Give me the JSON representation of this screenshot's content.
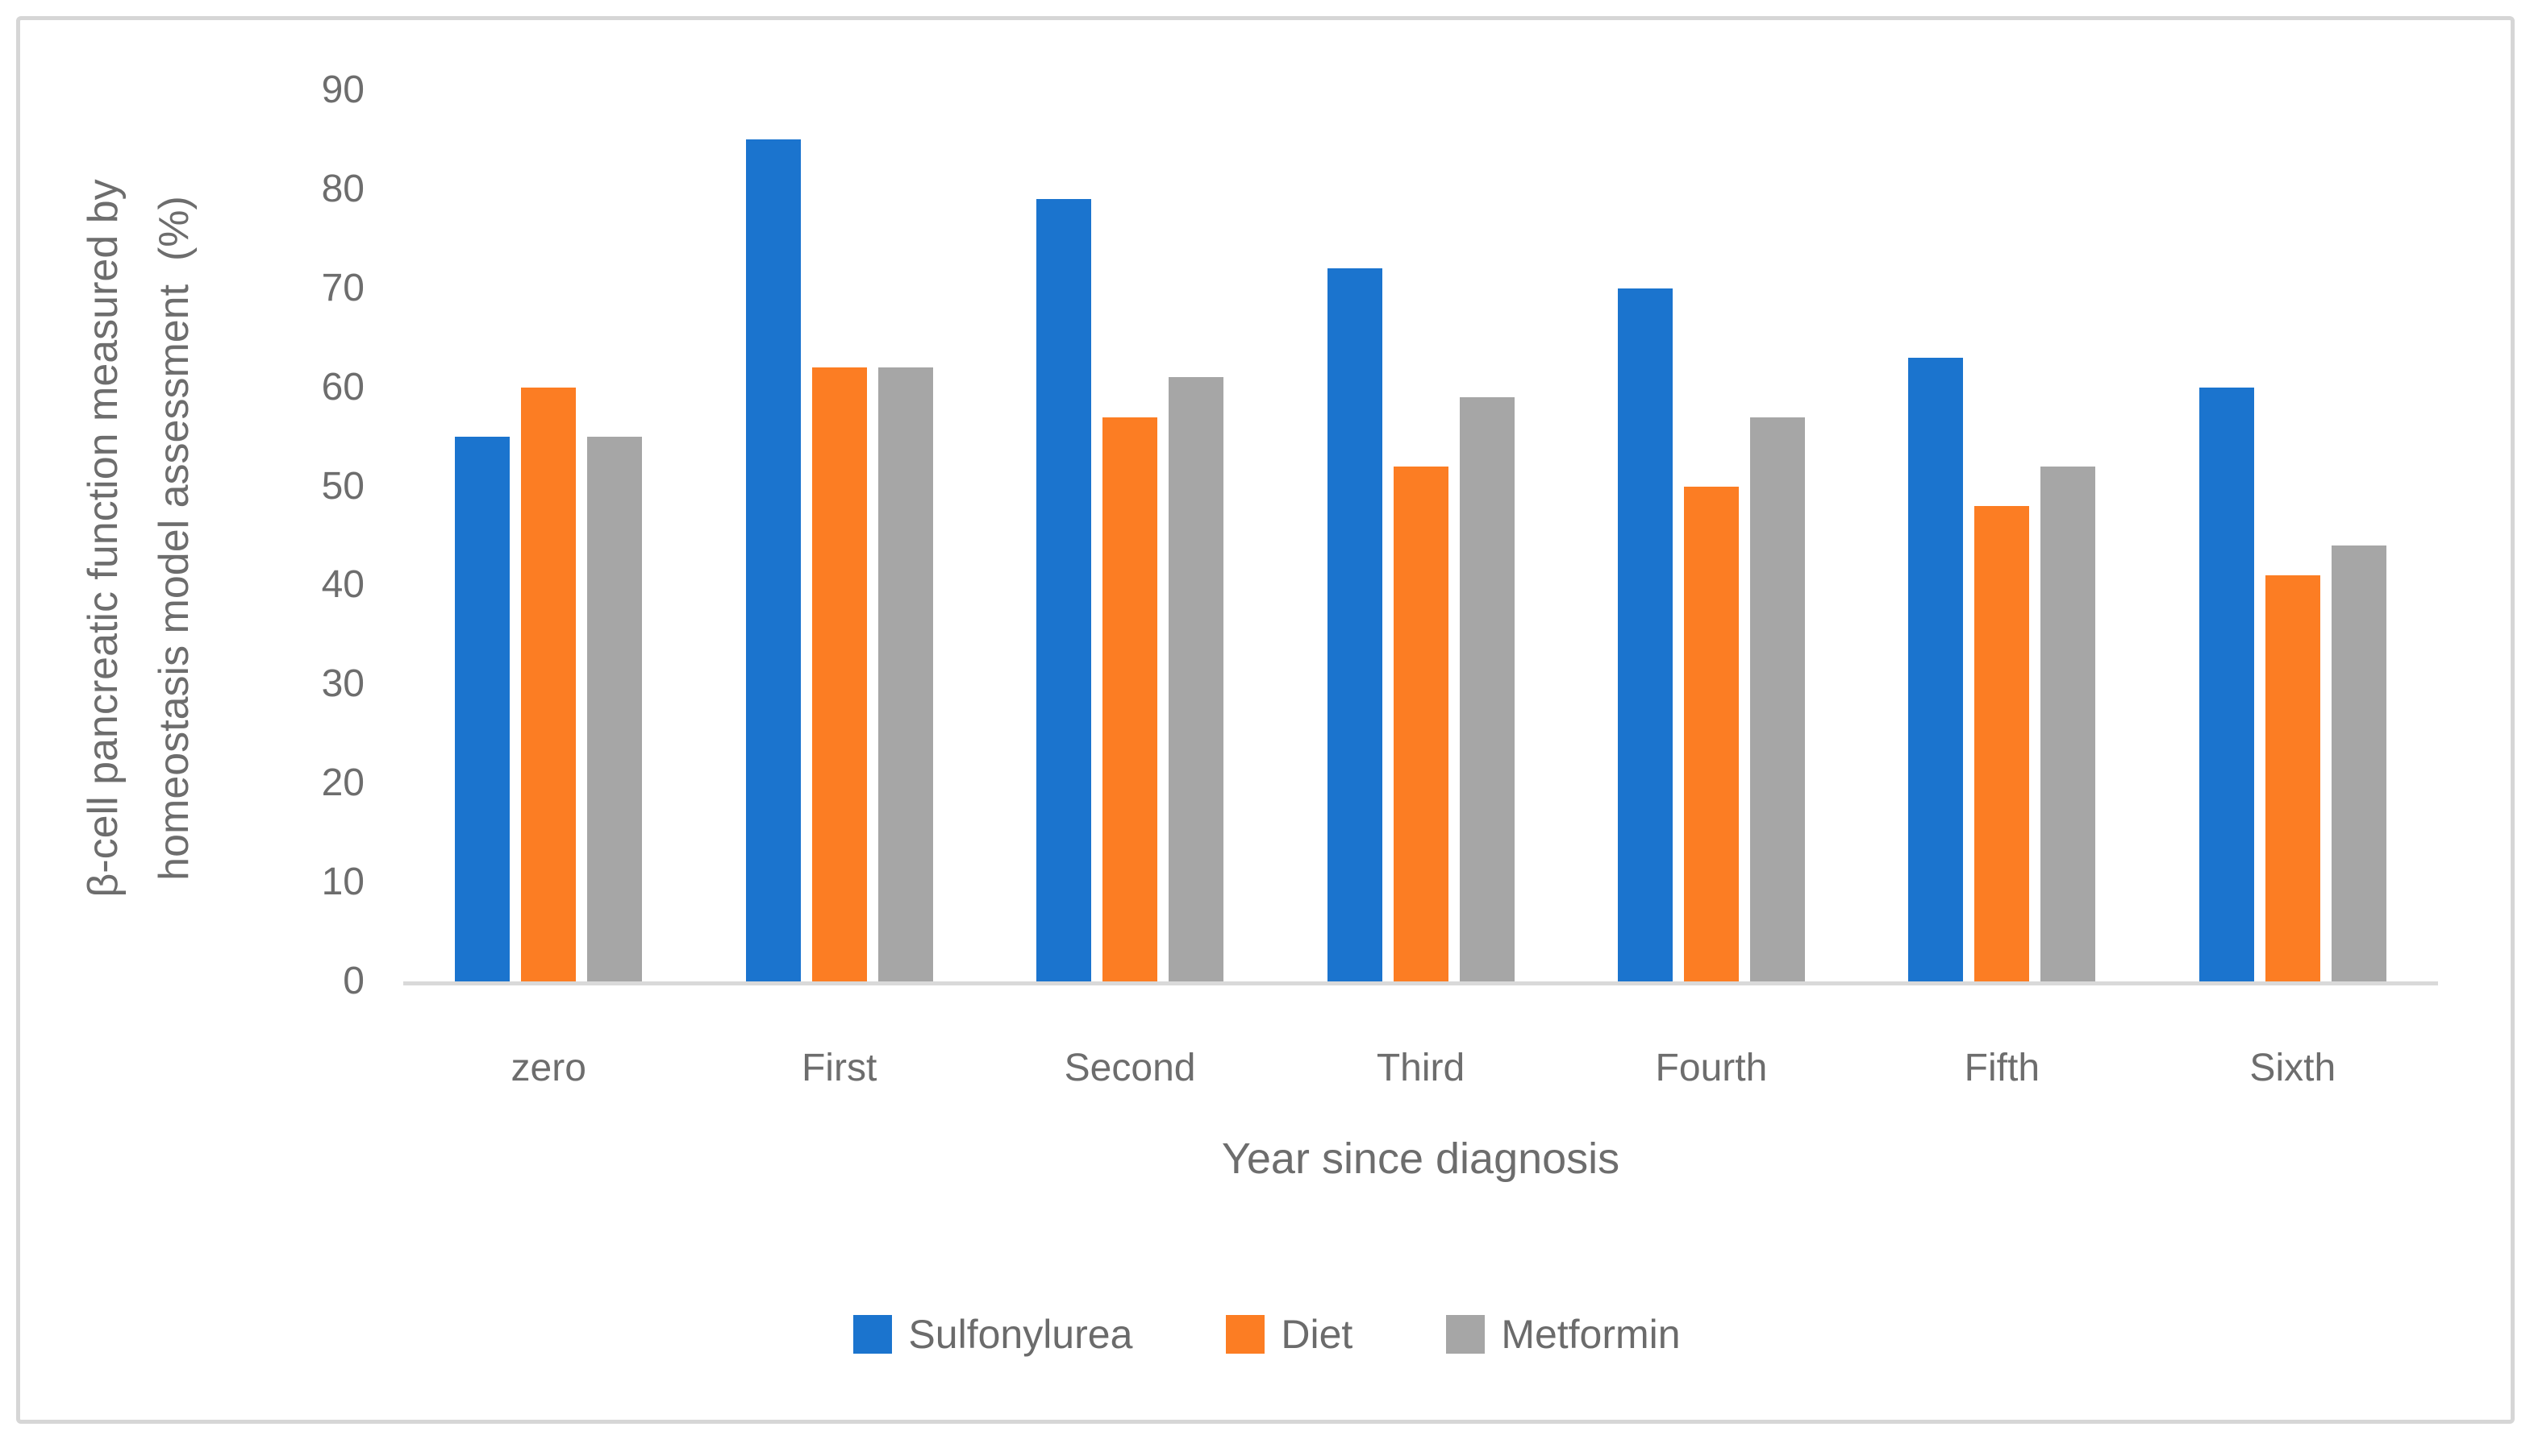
{
  "chart_data": {
    "type": "bar",
    "title": "",
    "categories": [
      "zero",
      "First",
      "Second",
      "Third",
      "Fourth",
      "Fifth",
      "Sixth"
    ],
    "series": [
      {
        "name": "Sulfonylurea",
        "color": "#1b74ce",
        "values": [
          55,
          85,
          79,
          72,
          70,
          63,
          60
        ]
      },
      {
        "name": "Diet",
        "color": "#fc7d23",
        "values": [
          60,
          62,
          57,
          52,
          50,
          48,
          41
        ]
      },
      {
        "name": "Metformin",
        "color": "#a6a6a6",
        "values": [
          55,
          62,
          61,
          59,
          57,
          52,
          44
        ]
      }
    ],
    "xlabel": "Year since diagnosis",
    "ylabel_line1": "β-cell pancreatic function measured by",
    "ylabel_line2": "homeostasis model assessment  (%)",
    "ylim": [
      0,
      90
    ],
    "yticks": [
      90,
      80,
      70,
      60,
      50,
      40,
      30,
      20,
      10,
      0
    ],
    "grid": "off",
    "legend_position": "bottom",
    "colors": {
      "axis_line": "#d9d9d9",
      "axis_text": "#6d6d6d",
      "frame_border": "#d6d6d6",
      "background": "#ffffff"
    }
  }
}
